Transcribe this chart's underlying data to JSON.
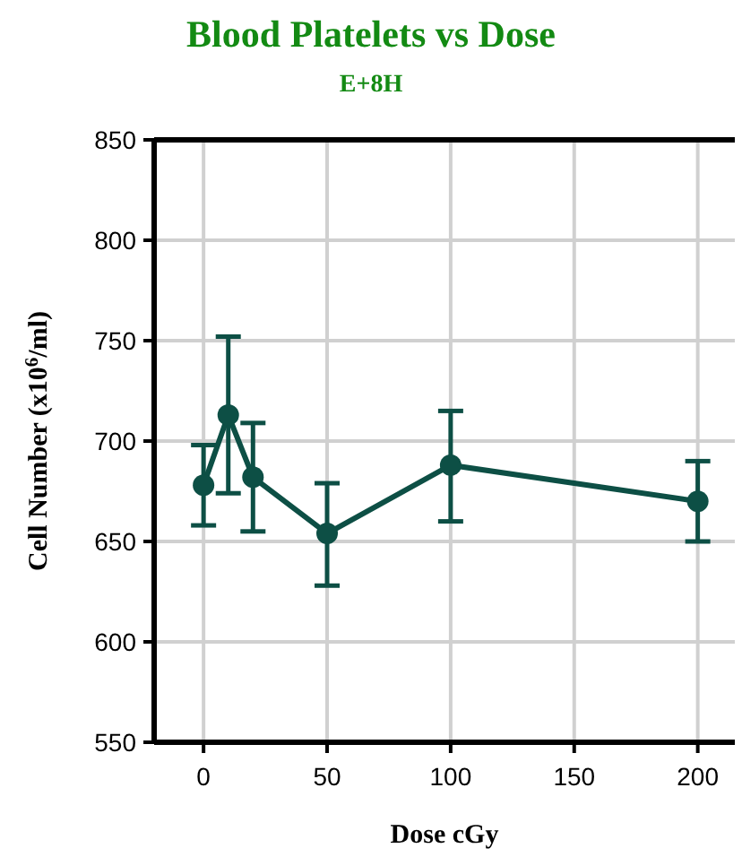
{
  "chart_data": {
    "type": "line",
    "title": "Blood Platelets vs Dose",
    "subtitle": "E+8H",
    "xlabel": "Dose cGy",
    "ylabel": "Cell Number (x10$^{6}$/ml)",
    "x": [
      0,
      10,
      20,
      50,
      100,
      200
    ],
    "series": [
      {
        "color": "#0d4f45",
        "values": [
          678,
          713,
          682,
          654,
          688,
          670
        ],
        "errors": [
          [
            658,
            698
          ],
          [
            674,
            752
          ],
          [
            655,
            709
          ],
          [
            628,
            679
          ],
          [
            660,
            715
          ],
          [
            650,
            690
          ]
        ]
      }
    ],
    "xlim": [
      -20,
      215
    ],
    "xticks": [
      0,
      50,
      100,
      150,
      200
    ],
    "ylim": [
      550,
      850
    ],
    "yticks": [
      550,
      600,
      650,
      700,
      750,
      800,
      850
    ],
    "grid": true,
    "marker": "circle",
    "line_style": "solid"
  }
}
